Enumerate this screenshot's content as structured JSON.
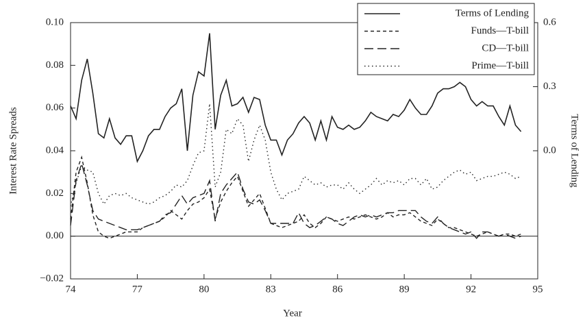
{
  "chart_data": {
    "type": "line",
    "x_label": "Year",
    "y_label": "Interest Rate Spreads",
    "y2_label": "Terms of Lending",
    "x": [
      74,
      74.25,
      74.5,
      74.75,
      75,
      75.25,
      75.5,
      75.75,
      76,
      76.25,
      76.5,
      76.75,
      77,
      77.25,
      77.5,
      77.75,
      78,
      78.25,
      78.5,
      78.75,
      79,
      79.25,
      79.5,
      79.75,
      80,
      80.25,
      80.5,
      80.75,
      81,
      81.25,
      81.5,
      81.75,
      82,
      82.25,
      82.5,
      82.75,
      83,
      83.25,
      83.5,
      83.75,
      84,
      84.25,
      84.5,
      84.75,
      85,
      85.25,
      85.5,
      85.75,
      86,
      86.25,
      86.5,
      86.75,
      87,
      87.25,
      87.5,
      87.75,
      88,
      88.25,
      88.5,
      88.75,
      89,
      89.25,
      89.5,
      89.75,
      90,
      90.25,
      90.5,
      90.75,
      91,
      91.25,
      91.5,
      91.75,
      92,
      92.25,
      92.5,
      92.75,
      93,
      93.25,
      93.5,
      93.75,
      94,
      94.25
    ],
    "xlim": [
      74,
      95
    ],
    "xticks": [
      74,
      77,
      80,
      83,
      86,
      89,
      92,
      95
    ],
    "ylim": [
      -0.02,
      0.1
    ],
    "yticks": [
      {
        "value": -0.02,
        "label": "−0.02"
      },
      {
        "value": 0,
        "label": "0.00"
      },
      0.02,
      0.04,
      0.06,
      0.08,
      {
        "value": 0.1,
        "label": "0.10"
      }
    ],
    "y2lim": [
      -0.6,
      0.6
    ],
    "y2ticks": [
      {
        "value": 0,
        "label": "0.0"
      },
      0.3,
      0.6
    ],
    "legend": "top-right",
    "series": [
      {
        "name": "Terms of Lending",
        "color": "#222222",
        "axis": "y2",
        "values": [
          0.21,
          0.15,
          0.33,
          0.43,
          0.27,
          0.08,
          0.06,
          0.15,
          0.06,
          0.03,
          0.07,
          0.07,
          -0.05,
          0,
          0.07,
          0.1,
          0.1,
          0.16,
          0.2,
          0.22,
          0.29,
          0,
          0.26,
          0.37,
          0.35,
          0.55,
          0.1,
          0.26,
          0.33,
          0.21,
          0.22,
          0.25,
          0.18,
          0.25,
          0.24,
          0.12,
          0.05,
          0.05,
          -0.02,
          0.05,
          0.08,
          0.13,
          0.16,
          0.13,
          0.05,
          0.14,
          0.05,
          0.16,
          0.11,
          0.1,
          0.12,
          0.1,
          0.11,
          0.14,
          0.18,
          0.16,
          0.15,
          0.14,
          0.17,
          0.16,
          0.19,
          0.24,
          0.2,
          0.17,
          0.17,
          0.21,
          0.27,
          0.29,
          0.29,
          0.3,
          0.32,
          0.3,
          0.24,
          0.21,
          0.23,
          0.21,
          0.21,
          0.16,
          0.12,
          0.21,
          0.12,
          0.09
        ]
      },
      {
        "name": "Funds—T-bill",
        "color": "#222222",
        "values": [
          0.008,
          0.03,
          0.037,
          0.025,
          0.01,
          0.002,
          0.0,
          -0.001,
          0.0,
          0.001,
          0.002,
          0.002,
          0.002,
          0.004,
          0.005,
          0.006,
          0.007,
          0.009,
          0.012,
          0.01,
          0.008,
          0.012,
          0.015,
          0.016,
          0.018,
          0.022,
          0.008,
          0.016,
          0.021,
          0.025,
          0.028,
          0.021,
          0.014,
          0.017,
          0.02,
          0.013,
          0.006,
          0.005,
          0.004,
          0.005,
          0.006,
          0.007,
          0.01,
          0.006,
          0.004,
          0.006,
          0.009,
          0.008,
          0.007,
          0.008,
          0.009,
          0.008,
          0.009,
          0.01,
          0.009,
          0.008,
          0.009,
          0.011,
          0.009,
          0.01,
          0.01,
          0.011,
          0.009,
          0.007,
          0.006,
          0.005,
          0.008,
          0.006,
          0.004,
          0.004,
          0.003,
          0.002,
          0.001,
          0.0,
          0.001,
          0.002,
          0.001,
          0.0,
          0.001,
          0.001,
          0.0,
          0.001
        ]
      },
      {
        "name": "CD—T-bill",
        "color": "#222222",
        "values": [
          0.005,
          0.026,
          0.034,
          0.024,
          0.012,
          0.008,
          0.007,
          0.006,
          0.005,
          0.004,
          0.003,
          0.003,
          0.003,
          0.004,
          0.005,
          0.006,
          0.007,
          0.01,
          0.011,
          0.015,
          0.019,
          0.015,
          0.018,
          0.019,
          0.02,
          0.026,
          0.007,
          0.02,
          0.024,
          0.027,
          0.03,
          0.022,
          0.016,
          0.015,
          0.017,
          0.012,
          0.006,
          0.006,
          0.006,
          0.006,
          0.006,
          0.011,
          0.006,
          0.004,
          0.005,
          0.007,
          0.009,
          0.008,
          0.006,
          0.005,
          0.007,
          0.009,
          0.01,
          0.009,
          0.01,
          0.009,
          0.01,
          0.011,
          0.011,
          0.012,
          0.012,
          0.012,
          0.012,
          0.009,
          0.007,
          0.006,
          0.009,
          0.006,
          0.004,
          0.003,
          0.002,
          0.001,
          0.002,
          -0.001,
          0.002,
          0.002,
          0.001,
          0.0,
          0.001,
          0.0,
          -0.001,
          0.0
        ]
      },
      {
        "name": "Prime—T-bill",
        "color": "#222222",
        "values": [
          0.014,
          0.025,
          0.033,
          0.031,
          0.03,
          0.02,
          0.015,
          0.019,
          0.02,
          0.019,
          0.02,
          0.018,
          0.017,
          0.016,
          0.015,
          0.016,
          0.018,
          0.019,
          0.021,
          0.024,
          0.023,
          0.026,
          0.033,
          0.039,
          0.04,
          0.062,
          0.023,
          0.03,
          0.05,
          0.048,
          0.055,
          0.052,
          0.035,
          0.045,
          0.052,
          0.045,
          0.03,
          0.022,
          0.017,
          0.02,
          0.021,
          0.022,
          0.028,
          0.026,
          0.024,
          0.025,
          0.023,
          0.024,
          0.024,
          0.022,
          0.025,
          0.022,
          0.02,
          0.022,
          0.024,
          0.027,
          0.024,
          0.026,
          0.025,
          0.026,
          0.024,
          0.027,
          0.027,
          0.024,
          0.027,
          0.022,
          0.023,
          0.026,
          0.028,
          0.03,
          0.031,
          0.029,
          0.03,
          0.026,
          0.027,
          0.028,
          0.028,
          0.029,
          0.03,
          0.029,
          0.027,
          0.028
        ]
      }
    ]
  }
}
